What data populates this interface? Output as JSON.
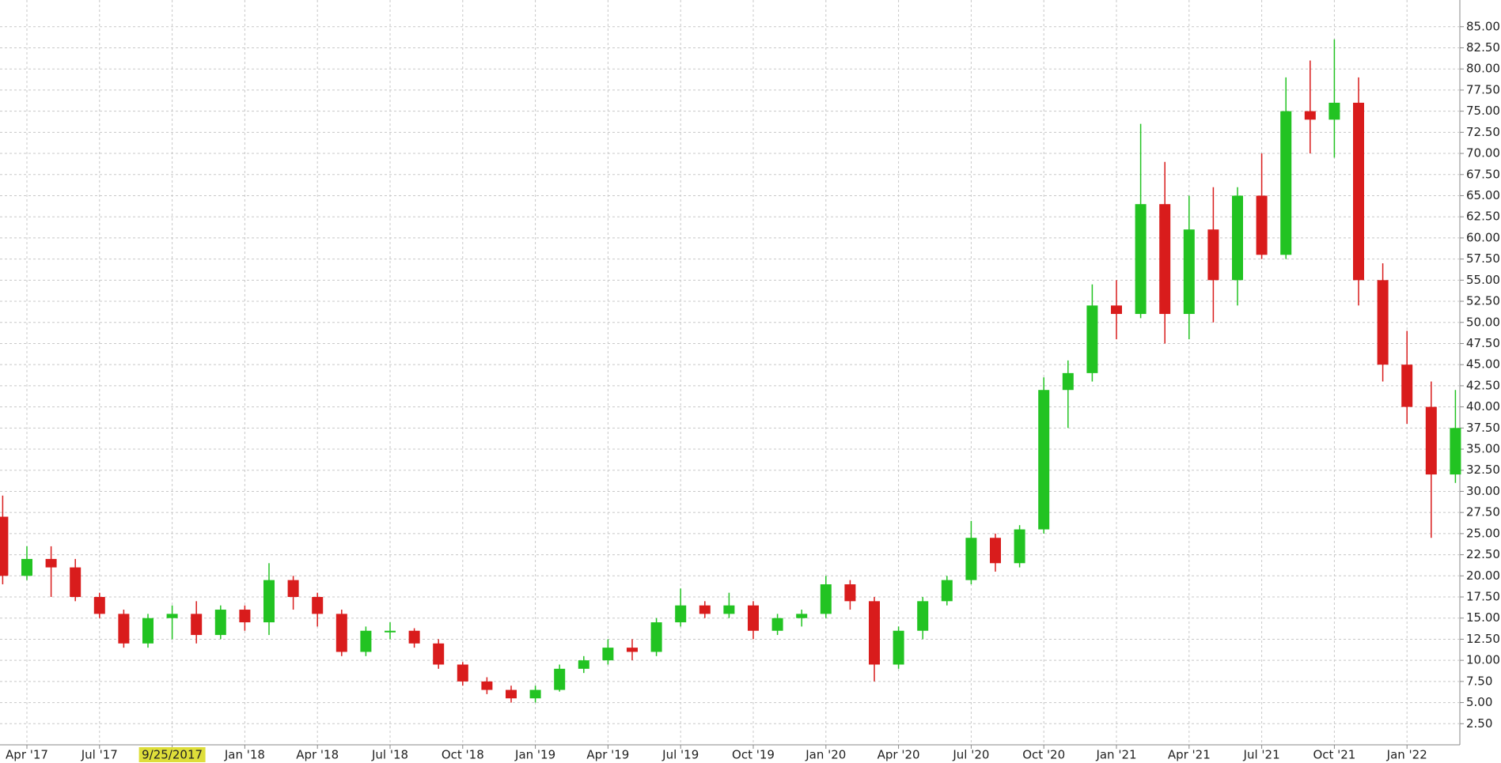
{
  "chart_data": {
    "type": "candlestick",
    "categories": [
      null,
      "Apr '17",
      null,
      null,
      "Jul '17",
      null,
      null,
      "9/25/2017",
      null,
      null,
      "Jan '18",
      null,
      null,
      "Apr '18",
      null,
      null,
      "Jul '18",
      null,
      null,
      "Oct '18",
      null,
      null,
      "Jan '19",
      null,
      null,
      "Apr '19",
      null,
      null,
      "Jul '19",
      null,
      null,
      "Oct '19",
      null,
      null,
      "Jan '20",
      null,
      null,
      "Apr '20",
      null,
      null,
      "Jul '20",
      null,
      null,
      "Oct '20",
      null,
      null,
      "Jan '21",
      null,
      null,
      "Apr '21",
      null,
      null,
      "Jul '21",
      null,
      null,
      "Oct '21",
      null,
      null,
      "Jan '22",
      null,
      null
    ],
    "open": [
      27,
      20,
      22,
      21,
      17.5,
      15.5,
      12,
      15,
      15.5,
      13,
      16,
      14.5,
      19.5,
      17.5,
      15.5,
      11,
      13.5,
      13.5,
      12,
      9.5,
      7.5,
      6.5,
      5.5,
      6.5,
      9,
      10,
      11.5,
      11,
      14.5,
      16.5,
      15.5,
      16.5,
      13.5,
      15,
      15.5,
      19,
      17,
      9.5,
      13.5,
      17,
      19.5,
      24.5,
      21.5,
      25.5,
      42,
      44,
      52,
      51,
      64,
      51,
      61,
      55,
      65,
      58,
      75,
      74,
      76,
      55,
      45,
      40,
      32
    ],
    "high": [
      29.5,
      23.5,
      23.5,
      22,
      18,
      16,
      15.5,
      16.5,
      17,
      16.5,
      16.5,
      21.5,
      20,
      18,
      16,
      14,
      14.5,
      13.8,
      12.5,
      9.8,
      8,
      7,
      7,
      9.5,
      10.5,
      12.5,
      12.5,
      15,
      18.5,
      17,
      18,
      17,
      15.5,
      16,
      20,
      19.5,
      17.5,
      14,
      17.5,
      20,
      26.5,
      25,
      26,
      43.5,
      45.5,
      54.5,
      55,
      73.5,
      69,
      65,
      66,
      66,
      70,
      79,
      81,
      83.5,
      79,
      57,
      49,
      43,
      42
    ],
    "low": [
      19,
      19.5,
      17.5,
      17,
      15,
      11.5,
      11.5,
      12.5,
      12,
      12.5,
      13.5,
      13,
      16,
      14,
      10.5,
      10.5,
      12.5,
      11.5,
      9,
      7,
      6,
      5,
      5,
      6.3,
      8.5,
      9.5,
      10,
      10.5,
      14,
      15,
      15,
      12.5,
      13,
      14,
      15,
      16,
      7.5,
      9,
      12.5,
      16.5,
      19,
      20.5,
      21,
      25,
      37.5,
      43,
      48,
      50.5,
      47.5,
      48,
      50,
      52,
      57.5,
      57.5,
      70,
      69.5,
      52,
      43,
      38,
      24.5,
      31
    ],
    "close": [
      20,
      22,
      21,
      17.5,
      15.5,
      12,
      15,
      15.5,
      13,
      16,
      14.5,
      19.5,
      17.5,
      15.5,
      11,
      13.5,
      13.5,
      12,
      9.5,
      7.5,
      6.5,
      5.5,
      6.5,
      9,
      10,
      11.5,
      11,
      14.5,
      16.5,
      15.5,
      16.5,
      13.5,
      15,
      15.5,
      19,
      17,
      9.5,
      13.5,
      17,
      19.5,
      24.5,
      21.5,
      25.5,
      42,
      44,
      52,
      51,
      64,
      51,
      61,
      55,
      65,
      58,
      75,
      74,
      76,
      55,
      45,
      40,
      32,
      37.5
    ],
    "up_color": "#22c322",
    "down_color": "#d91c1c",
    "ylim": [
      0,
      87.6
    ],
    "yticks": [
      {
        "value": 2.5,
        "label": "2.50"
      },
      {
        "value": 5,
        "label": "5.00"
      },
      {
        "value": 7.5,
        "label": "7.50"
      },
      {
        "value": 10,
        "label": "10.00"
      },
      {
        "value": 12.5,
        "label": "12.50"
      },
      {
        "value": 15,
        "label": "15.00"
      },
      {
        "value": 17.5,
        "label": "17.50"
      },
      {
        "value": 20,
        "label": "20.00"
      },
      {
        "value": 22.5,
        "label": "22.50"
      },
      {
        "value": 25,
        "label": "25.00"
      },
      {
        "value": 27.5,
        "label": "27.50"
      },
      {
        "value": 30,
        "label": "30.00"
      },
      {
        "value": 32.5,
        "label": "32.50"
      },
      {
        "value": 35,
        "label": "35.00"
      },
      {
        "value": 37.5,
        "label": "37.50"
      },
      {
        "value": 40,
        "label": "40.00"
      },
      {
        "value": 42.5,
        "label": "42.50"
      },
      {
        "value": 45,
        "label": "45.00"
      },
      {
        "value": 47.5,
        "label": "47.50"
      },
      {
        "value": 50,
        "label": "50.00"
      },
      {
        "value": 52.5,
        "label": "52.50"
      },
      {
        "value": 55,
        "label": "55.00"
      },
      {
        "value": 57.5,
        "label": "57.50"
      },
      {
        "value": 60,
        "label": "60.00"
      },
      {
        "value": 62.5,
        "label": "62.50"
      },
      {
        "value": 65,
        "label": "65.00"
      },
      {
        "value": 67.5,
        "label": "67.50"
      },
      {
        "value": 70,
        "label": "70.00"
      },
      {
        "value": 72.5,
        "label": "72.50"
      },
      {
        "value": 75,
        "label": "75.00"
      },
      {
        "value": 77.5,
        "label": "77.50"
      },
      {
        "value": 80,
        "label": "80.00"
      },
      {
        "value": 82.5,
        "label": "82.50"
      },
      {
        "value": 85,
        "label": "85.00"
      }
    ],
    "grid": true,
    "highlight": {
      "category": 7,
      "color": "#dede3a"
    }
  }
}
